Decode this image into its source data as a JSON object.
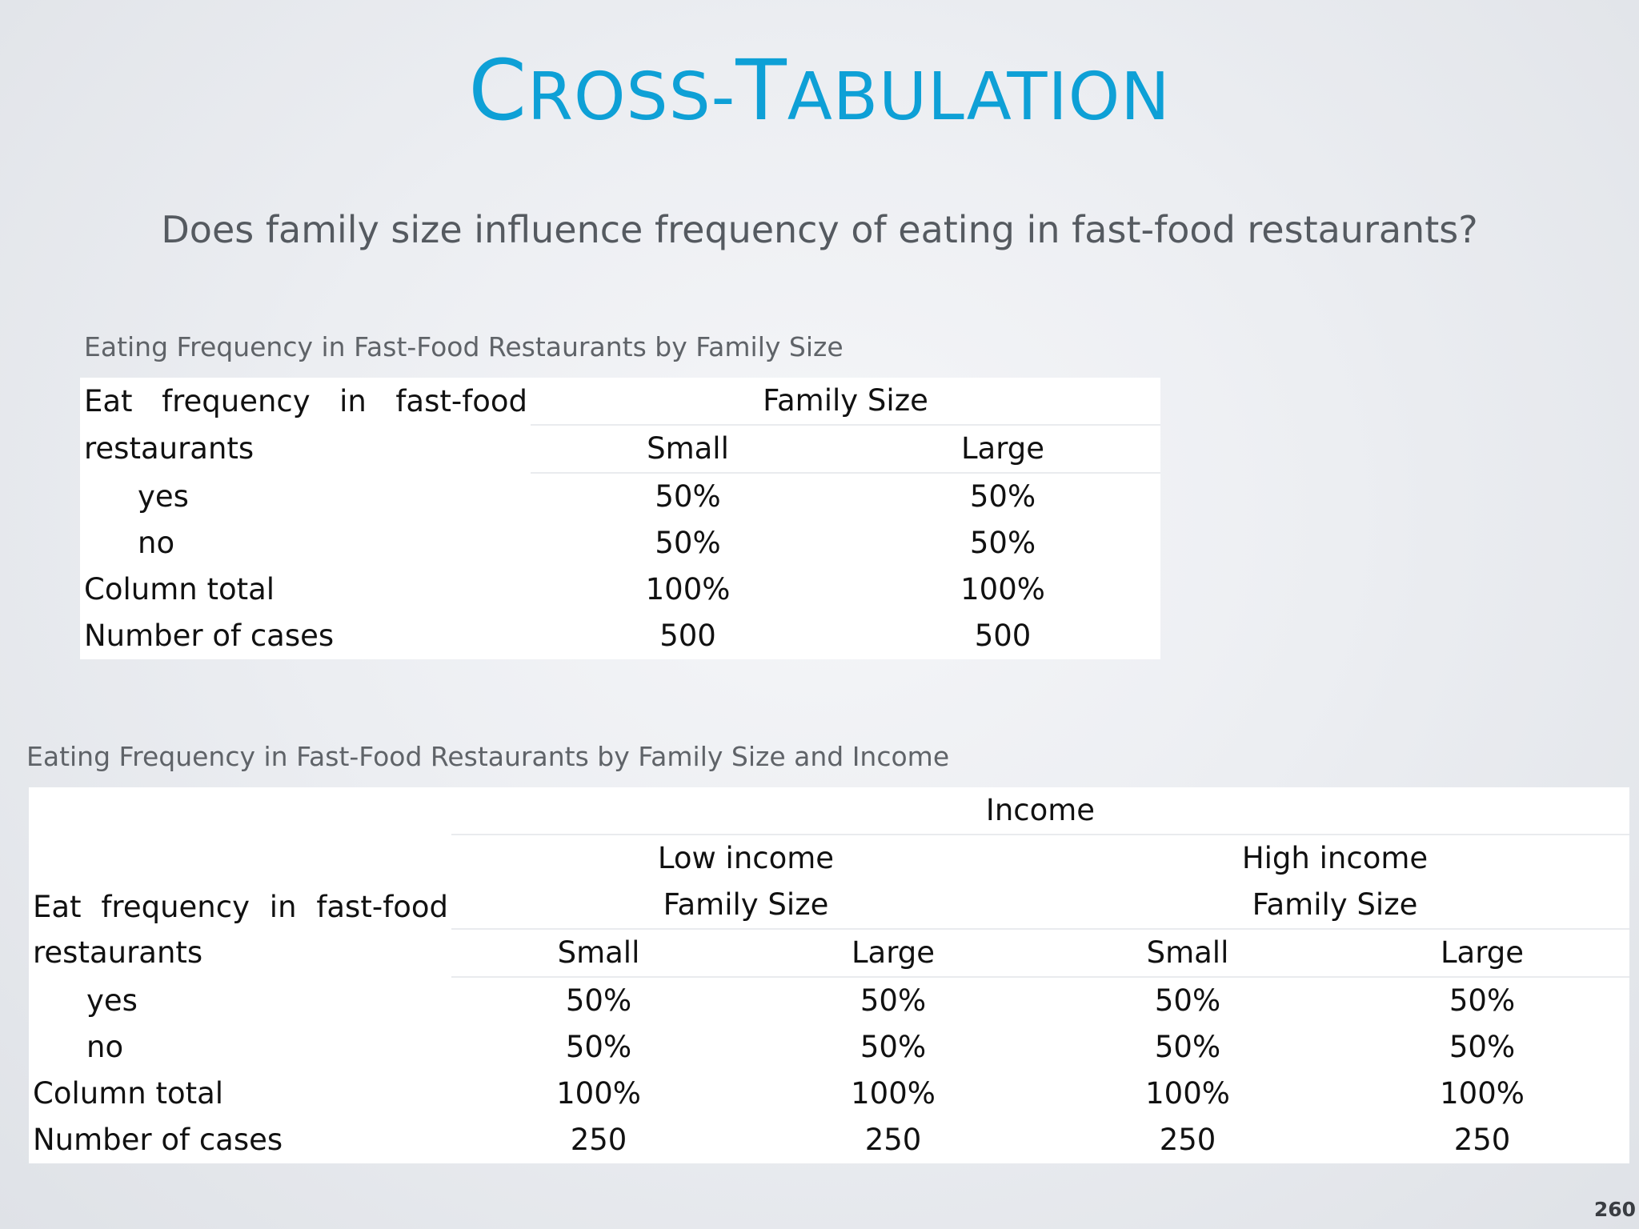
{
  "title": {
    "part1_initial": "C",
    "part1_rest": "ROSS-",
    "part2_initial": "T",
    "part2_rest": "ABULATION"
  },
  "subtitle": "Does family size influence frequency of eating in fast-food restaurants?",
  "table1": {
    "caption": "Eating Frequency in Fast-Food Restaurants by Family Size",
    "row_header": {
      "line1_words": [
        "Eat",
        "frequency",
        "in",
        "fast-food"
      ],
      "line2": "restaurants"
    },
    "group_header": "Family Size",
    "columns": [
      "Small",
      "Large"
    ],
    "rows": [
      {
        "label": "yes",
        "values": [
          "50%",
          "50%"
        ]
      },
      {
        "label": "no",
        "values": [
          "50%",
          "50%"
        ]
      },
      {
        "label": "Column total",
        "values": [
          "100%",
          "100%"
        ]
      },
      {
        "label": "Number of cases",
        "values": [
          "500",
          "500"
        ]
      }
    ]
  },
  "table2": {
    "caption": "Eating Frequency in Fast-Food Restaurants by Family Size and Income",
    "row_header": {
      "line1_words": [
        "Eat",
        "frequency",
        "in",
        "fast-food"
      ],
      "line2": "restaurants"
    },
    "top_header": "Income",
    "income_groups": [
      {
        "label": "Low income",
        "sub": "Family Size"
      },
      {
        "label": "High income",
        "sub": "Family Size"
      }
    ],
    "columns": [
      "Small",
      "Large",
      "Small",
      "Large"
    ],
    "rows": [
      {
        "label": "yes",
        "values": [
          "50%",
          "50%",
          "50%",
          "50%"
        ]
      },
      {
        "label": "no",
        "values": [
          "50%",
          "50%",
          "50%",
          "50%"
        ]
      },
      {
        "label": "Column total",
        "values": [
          "100%",
          "100%",
          "100%",
          "100%"
        ]
      },
      {
        "label": "Number of cases",
        "values": [
          "250",
          "250",
          "250",
          "250"
        ]
      }
    ]
  },
  "page_number": "260",
  "colors": {
    "title": "#0ea0d6",
    "subtitle": "#555a60",
    "caption": "#5f6368",
    "table_background": "#ffffff"
  }
}
